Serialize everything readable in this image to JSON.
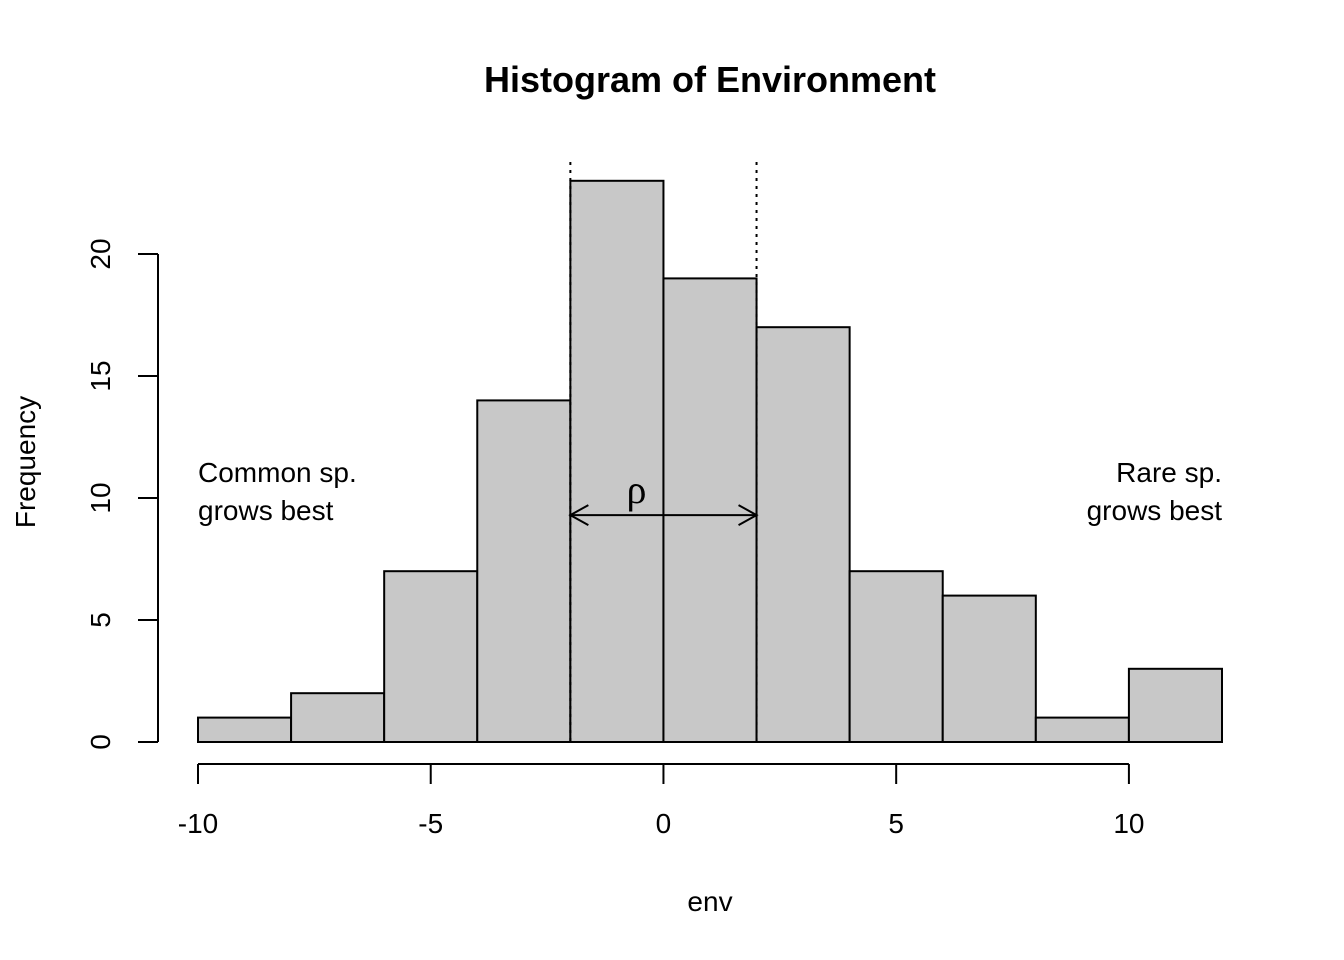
{
  "chart_data": {
    "type": "bar",
    "title": "Histogram of Environment",
    "xlabel": "env",
    "ylabel": "Frequency",
    "bins": [
      {
        "start": -10,
        "end": -8,
        "count": 1
      },
      {
        "start": -8,
        "end": -6,
        "count": 2
      },
      {
        "start": -6,
        "end": -4,
        "count": 7
      },
      {
        "start": -4,
        "end": -2,
        "count": 14
      },
      {
        "start": -2,
        "end": 0,
        "count": 23
      },
      {
        "start": 0,
        "end": 2,
        "count": 19
      },
      {
        "start": 2,
        "end": 4,
        "count": 17
      },
      {
        "start": 4,
        "end": 6,
        "count": 7
      },
      {
        "start": 6,
        "end": 8,
        "count": 6
      },
      {
        "start": 8,
        "end": 10,
        "count": 1
      },
      {
        "start": 10,
        "end": 12,
        "count": 3
      }
    ],
    "xlim": [
      -10,
      12
    ],
    "ylim": [
      0,
      23
    ],
    "x_ticks": [
      -10,
      -5,
      0,
      5,
      10
    ],
    "x_tick_labels": [
      "-10",
      "-5",
      "0",
      "5",
      "10"
    ],
    "y_ticks": [
      0,
      5,
      10,
      15,
      20
    ],
    "y_tick_labels": [
      "0",
      "5",
      "10",
      "15",
      "20"
    ],
    "vertical_lines": [
      -2,
      2
    ],
    "arrow": {
      "from": -2,
      "to": 2,
      "y": 9.3,
      "label": "ρ"
    },
    "annotations": {
      "left": [
        "Common sp.",
        "grows best"
      ],
      "right": [
        "Rare sp.",
        "grows best"
      ]
    },
    "bar_fill": "#c8c8c8",
    "bar_stroke": "#000000"
  }
}
